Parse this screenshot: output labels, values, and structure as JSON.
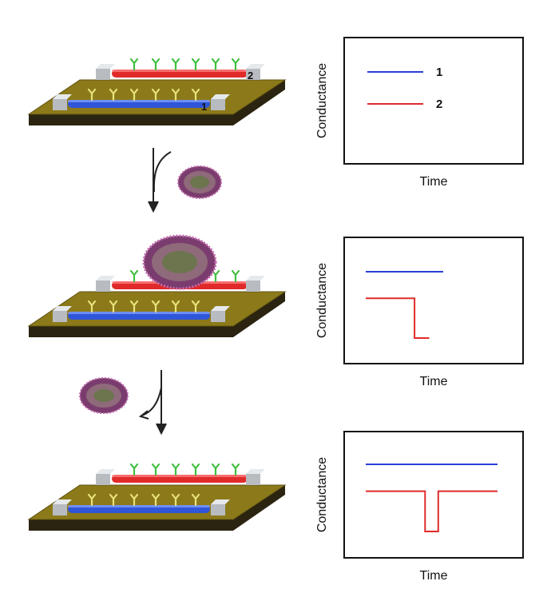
{
  "colors": {
    "substrate_top": "#8c7a1a",
    "substrate_side": "#2a2410",
    "wire_1": "#2f56d8",
    "wire_2": "#e02a2a",
    "electrode": "#c9cdd2",
    "antibody_green": "#3fbf3f",
    "antibody_yellow": "#e8e27a",
    "virus_body": "#7a3c6e",
    "trace_1": "#2b3fd6",
    "trace_2": "#e02a2a"
  },
  "device": {
    "wire_1_label": "1",
    "wire_2_label": "2"
  },
  "charts": [
    {
      "id": "stage-1",
      "ylabel": "Conductance",
      "xlabel": "Time",
      "legend": [
        {
          "label": "1"
        },
        {
          "label": "2"
        }
      ]
    },
    {
      "id": "stage-2",
      "ylabel": "Conductance",
      "xlabel": "Time"
    },
    {
      "id": "stage-3",
      "ylabel": "Conductance",
      "xlabel": "Time"
    }
  ],
  "chart_data": [
    {
      "type": "line",
      "series": [
        {
          "name": "1",
          "x": [],
          "y": []
        },
        {
          "name": "2",
          "x": [],
          "y": []
        }
      ],
      "xlabel": "Time",
      "ylabel": "Conductance"
    },
    {
      "type": "line",
      "series": [
        {
          "x": [
            0,
            1
          ],
          "y": [
            1,
            1
          ]
        },
        {
          "x": [
            0,
            0.63,
            0.63,
            0.82
          ],
          "y": [
            0.6,
            0.6,
            0,
            0
          ]
        }
      ],
      "xlabel": "Time",
      "ylabel": "Conductance"
    },
    {
      "type": "line",
      "series": [
        {
          "x": [
            0,
            1
          ],
          "y": [
            1,
            1
          ]
        },
        {
          "x": [
            0,
            0.45,
            0.45,
            0.55,
            0.55,
            1
          ],
          "y": [
            0.6,
            0.6,
            0,
            0,
            0.6,
            0.6
          ]
        }
      ],
      "xlabel": "Time",
      "ylabel": "Conductance"
    }
  ]
}
